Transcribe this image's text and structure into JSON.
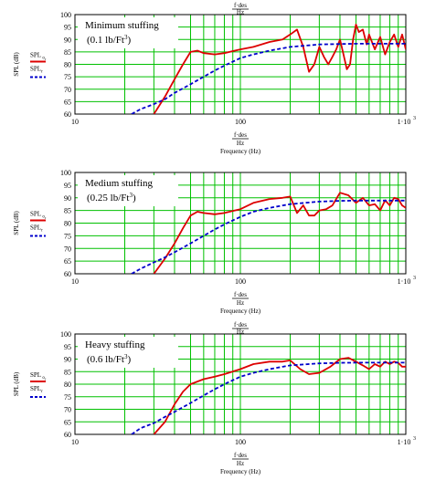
{
  "chart_data": [
    {
      "type": "line",
      "title": "",
      "annotation": [
        "Minimum stuffing",
        "(0.1 lb/Ft",
        "3",
        ")"
      ],
      "xlabel_top": [
        "f·des",
        "Hz"
      ],
      "xlabel": [
        "f·des",
        "Hz",
        "Frequency (Hz)"
      ],
      "ylabel": "SPL (dB)",
      "x_scale": "log",
      "xlim": [
        10,
        1000
      ],
      "ylim": [
        60,
        100
      ],
      "y_ticks": [
        60,
        65,
        70,
        75,
        80,
        85,
        90,
        95,
        100
      ],
      "x_tick_labels": [
        "10",
        "100",
        "1·10",
        "3"
      ],
      "grid": true,
      "legend": {
        "placement": "left",
        "entries": [
          {
            "text": "SPL",
            "sub": "o",
            "sub2": "r",
            "style": "solid-red"
          },
          {
            "text": "SPL",
            "sub": "r",
            "style": "dashed-blue"
          }
        ]
      },
      "series": [
        {
          "color": "#dd0000",
          "dash": "solid",
          "x": [
            30,
            35,
            40,
            45,
            50,
            55,
            60,
            70,
            80,
            100,
            120,
            150,
            180,
            200,
            220,
            240,
            260,
            280,
            300,
            320,
            340,
            360,
            380,
            400,
            420,
            440,
            460,
            480,
            500,
            520,
            550,
            580,
            600,
            650,
            700,
            750,
            800,
            850,
            900,
            950,
            1000
          ],
          "y": [
            60,
            67,
            74,
            80,
            85,
            85.5,
            84.5,
            84,
            84.5,
            86,
            87,
            89,
            90,
            92,
            94,
            87,
            77,
            80,
            87,
            83,
            80,
            83,
            86,
            90,
            84,
            78,
            80,
            90,
            96,
            93,
            94,
            88,
            92,
            86,
            91,
            84,
            89,
            92,
            87,
            92,
            86
          ]
        },
        {
          "color": "#0000cc",
          "dash": "dashed",
          "x": [
            22,
            25,
            30,
            35,
            40,
            50,
            60,
            70,
            80,
            100,
            120,
            150,
            200,
            300,
            400,
            500,
            600,
            700,
            800,
            1000
          ],
          "y": [
            60,
            62,
            64,
            66,
            68.5,
            72,
            75,
            77.5,
            79.5,
            82.5,
            84,
            85.5,
            87,
            88,
            88.2,
            88.3,
            88.3,
            88.3,
            88.3,
            88.3
          ]
        }
      ]
    },
    {
      "type": "line",
      "title": "",
      "annotation": [
        "Medium stuffing",
        "(0.25 lb/Ft",
        "3",
        ")"
      ],
      "xlabel_top": [],
      "xlabel": [
        "f·des",
        "Hz",
        "Frequency (Hz)"
      ],
      "ylabel": "SPL (dB)",
      "x_scale": "log",
      "xlim": [
        10,
        1000
      ],
      "ylim": [
        60,
        100
      ],
      "y_ticks": [
        60,
        65,
        70,
        75,
        80,
        85,
        90,
        95,
        100
      ],
      "x_tick_labels": [
        "10",
        "100",
        "1·10",
        "3"
      ],
      "grid": true,
      "legend": {
        "placement": "left",
        "entries": [
          {
            "text": "SPL",
            "sub": "o",
            "sub2": "r",
            "style": "solid-red"
          },
          {
            "text": "SPL",
            "sub": "r",
            "style": "dashed-blue"
          }
        ]
      },
      "series": [
        {
          "color": "#dd0000",
          "dash": "solid",
          "x": [
            30,
            35,
            40,
            45,
            50,
            55,
            60,
            70,
            80,
            100,
            120,
            150,
            180,
            200,
            220,
            240,
            260,
            280,
            300,
            330,
            360,
            400,
            450,
            500,
            550,
            600,
            650,
            700,
            750,
            800,
            850,
            900,
            950,
            1000
          ],
          "y": [
            60,
            66,
            72,
            78,
            83,
            84.5,
            84,
            83.5,
            84,
            85.5,
            88,
            89.5,
            90,
            90.5,
            84,
            87,
            83,
            83,
            85,
            85.5,
            87,
            92,
            91,
            88,
            90,
            87,
            87.5,
            85,
            89,
            87,
            90,
            89.5,
            87,
            86
          ]
        },
        {
          "color": "#0000cc",
          "dash": "dashed",
          "x": [
            22,
            25,
            30,
            35,
            40,
            50,
            60,
            70,
            80,
            100,
            120,
            150,
            200,
            300,
            400,
            500,
            600,
            700,
            800,
            1000
          ],
          "y": [
            60,
            62,
            64.5,
            66.5,
            68.5,
            72,
            75,
            77.5,
            79.5,
            82.5,
            84.5,
            86,
            87.5,
            88.5,
            88.8,
            88.9,
            88.9,
            88.9,
            88.9,
            88.9
          ]
        }
      ]
    },
    {
      "type": "line",
      "title": "",
      "annotation": [
        "Heavy stuffing",
        "(0.6 lb/Ft",
        "3",
        ")"
      ],
      "xlabel_top": [
        "f·des",
        "Hz"
      ],
      "xlabel": [
        "f·des",
        "Hz",
        "Frequency (Hz)"
      ],
      "ylabel": "SPL (dB)",
      "x_scale": "log",
      "xlim": [
        10,
        1000
      ],
      "ylim": [
        60,
        100
      ],
      "y_ticks": [
        60,
        65,
        70,
        75,
        80,
        85,
        90,
        95,
        100
      ],
      "x_tick_labels": [
        "10",
        "100",
        "1·10",
        "3"
      ],
      "grid": true,
      "legend": {
        "placement": "left",
        "entries": [
          {
            "text": "SPL",
            "sub": "o",
            "sub2": "r",
            "style": "solid-red"
          },
          {
            "text": "SPL",
            "sub": "r",
            "style": "dashed-blue"
          }
        ]
      },
      "series": [
        {
          "color": "#dd0000",
          "dash": "solid",
          "x": [
            30,
            35,
            40,
            45,
            50,
            60,
            70,
            80,
            100,
            120,
            150,
            180,
            200,
            230,
            260,
            300,
            350,
            400,
            450,
            500,
            550,
            600,
            650,
            700,
            750,
            800,
            850,
            900,
            950,
            1000
          ],
          "y": [
            60,
            65,
            72,
            77,
            80,
            82,
            83,
            84,
            86,
            88,
            89,
            89,
            89.5,
            86,
            84,
            84.5,
            87,
            90,
            90.5,
            89,
            87.5,
            86,
            88,
            87,
            89,
            88,
            89,
            88.5,
            87,
            87
          ]
        },
        {
          "color": "#0000cc",
          "dash": "dashed",
          "x": [
            22,
            25,
            30,
            35,
            40,
            50,
            60,
            70,
            80,
            100,
            120,
            150,
            200,
            300,
            400,
            500,
            600,
            700,
            800,
            1000
          ],
          "y": [
            60,
            62.5,
            64.5,
            67,
            69,
            72.5,
            75.5,
            78,
            80,
            83,
            84.5,
            86,
            87.5,
            88.3,
            88.5,
            88.6,
            88.6,
            88.6,
            88.6,
            88.6
          ]
        }
      ]
    }
  ]
}
